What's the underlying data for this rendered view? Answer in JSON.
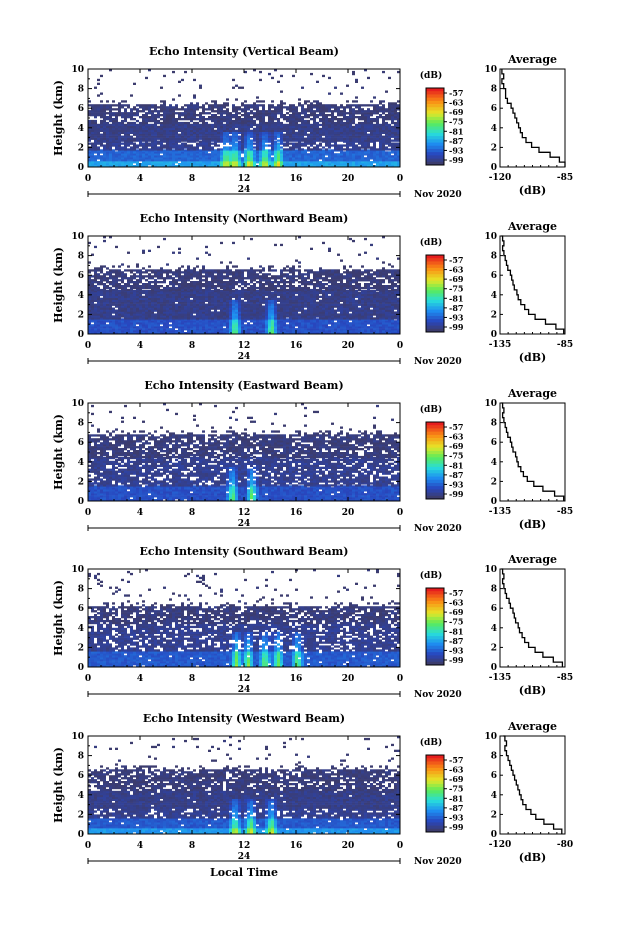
{
  "chart_data": [
    {
      "type": "heatmap",
      "title": "Echo Intensity (Vertical Beam)",
      "ylabel": "Height (km)",
      "xlim": [
        0,
        24
      ],
      "ylim": [
        0,
        10
      ],
      "xticks": [
        "0",
        "4",
        "8",
        "12",
        "16",
        "20",
        "0"
      ],
      "yticks": [
        "0",
        "2",
        "4",
        "6",
        "8",
        "10"
      ],
      "date_label": "24",
      "month_label": "Nov 2020",
      "colorbar": {
        "unit": "(dB)",
        "ticks": [
          "-57",
          "-63",
          "-69",
          "-75",
          "-81",
          "-87",
          "-93",
          "-99"
        ]
      },
      "echo_layers": [
        {
          "from_km": 0.0,
          "to_km": 0.6,
          "level": 0.3
        },
        {
          "from_km": 0.6,
          "to_km": 1.7,
          "level": 0.18
        },
        {
          "from_km": 1.7,
          "to_km": 2.6,
          "level": 0.05,
          "gaps": true
        },
        {
          "from_km": 2.6,
          "to_km": 4.4,
          "level": 0.04
        },
        {
          "from_km": 4.4,
          "to_km": 6.4,
          "level": 0.02,
          "gaps": true
        },
        {
          "from_km": 6.4,
          "to_km": 10.0,
          "level": 0.0,
          "sparse": true
        }
      ],
      "convection_hours": [
        10.5,
        11.2,
        12.3,
        13.5,
        14.5
      ],
      "average": {
        "title": "Average",
        "xlabel": "(dB)",
        "xticks": [
          "-120",
          "-85"
        ],
        "xlim": [
          -120,
          -85
        ],
        "heights_km": [
          0,
          0.5,
          1,
          1.5,
          2,
          2.5,
          3,
          3.5,
          4,
          4.5,
          5,
          5.5,
          6,
          6.5,
          7,
          7.5,
          8,
          8.5,
          9,
          9.5,
          10
        ],
        "values_db": [
          -85,
          -88,
          -93,
          -99,
          -103,
          -106,
          -108,
          -109,
          -110,
          -111,
          -112,
          -113,
          -114,
          -116,
          -117,
          -117,
          -118,
          -119,
          -118,
          -119,
          -119
        ]
      }
    },
    {
      "type": "heatmap",
      "title": "Echo Intensity (Northward Beam)",
      "ylabel": "Height (km)",
      "xlim": [
        0,
        24
      ],
      "ylim": [
        0,
        10
      ],
      "xticks": [
        "0",
        "4",
        "8",
        "12",
        "16",
        "20",
        "0"
      ],
      "yticks": [
        "0",
        "2",
        "4",
        "6",
        "8",
        "10"
      ],
      "date_label": "24",
      "month_label": "Nov 2020",
      "colorbar": {
        "unit": "(dB)",
        "ticks": [
          "-57",
          "-63",
          "-69",
          "-75",
          "-81",
          "-87",
          "-93",
          "-99"
        ]
      },
      "echo_layers": [
        {
          "from_km": 0.0,
          "to_km": 1.5,
          "level": 0.14
        },
        {
          "from_km": 1.5,
          "to_km": 4.4,
          "level": 0.04
        },
        {
          "from_km": 4.4,
          "to_km": 6.6,
          "level": 0.02,
          "gaps": true
        },
        {
          "from_km": 6.6,
          "to_km": 10.0,
          "level": 0.0,
          "sparse": true
        }
      ],
      "convection_hours": [
        11.2,
        14.0
      ],
      "average": {
        "title": "Average",
        "xlabel": "(dB)",
        "xticks": [
          "-135",
          "-85"
        ],
        "xlim": [
          -135,
          -85
        ],
        "heights_km": [
          0,
          0.5,
          1,
          1.5,
          2,
          2.5,
          3,
          3.5,
          4,
          4.5,
          5,
          5.5,
          6,
          6.5,
          7,
          7.5,
          8,
          8.5,
          9,
          9.5,
          10
        ],
        "values_db": [
          -86,
          -92,
          -100,
          -108,
          -113,
          -116,
          -119,
          -121,
          -122,
          -124,
          -125,
          -126,
          -127,
          -129,
          -130,
          -131,
          -132,
          -133,
          -132,
          -133,
          -134
        ]
      }
    },
    {
      "type": "heatmap",
      "title": "Echo Intensity (Eastward Beam)",
      "ylabel": "Height (km)",
      "xlim": [
        0,
        24
      ],
      "ylim": [
        0,
        10
      ],
      "xticks": [
        "0",
        "4",
        "8",
        "12",
        "16",
        "20",
        "0"
      ],
      "yticks": [
        "0",
        "2",
        "4",
        "6",
        "8",
        "10"
      ],
      "date_label": "24",
      "month_label": "Nov 2020",
      "colorbar": {
        "unit": "(dB)",
        "ticks": [
          "-57",
          "-63",
          "-69",
          "-75",
          "-81",
          "-87",
          "-93",
          "-99"
        ]
      },
      "echo_layers": [
        {
          "from_km": 0.0,
          "to_km": 1.5,
          "level": 0.14
        },
        {
          "from_km": 1.5,
          "to_km": 4.4,
          "level": 0.05,
          "gaps": true
        },
        {
          "from_km": 4.4,
          "to_km": 6.8,
          "level": 0.02,
          "gaps": true
        },
        {
          "from_km": 6.8,
          "to_km": 10.0,
          "level": 0.0,
          "sparse": true
        }
      ],
      "convection_hours": [
        11.0,
        12.5
      ],
      "average": {
        "title": "Average",
        "xlabel": "(dB)",
        "xticks": [
          "-135",
          "-85"
        ],
        "xlim": [
          -135,
          -85
        ],
        "heights_km": [
          0,
          0.5,
          1,
          1.5,
          2,
          2.5,
          3,
          3.5,
          4,
          4.5,
          5,
          5.5,
          6,
          6.5,
          7,
          7.5,
          8,
          8.5,
          9,
          9.5,
          10
        ],
        "values_db": [
          -86,
          -93,
          -102,
          -109,
          -114,
          -117,
          -119,
          -121,
          -122,
          -123,
          -125,
          -126,
          -127,
          -129,
          -130,
          -131,
          -132,
          -133,
          -132,
          -133,
          -134
        ]
      }
    },
    {
      "type": "heatmap",
      "title": "Echo Intensity (Southward Beam)",
      "ylabel": "Height (km)",
      "xlim": [
        0,
        24
      ],
      "ylim": [
        0,
        10
      ],
      "xticks": [
        "0",
        "4",
        "8",
        "12",
        "16",
        "20",
        "0"
      ],
      "yticks": [
        "0",
        "2",
        "4",
        "6",
        "8",
        "10"
      ],
      "date_label": "24",
      "month_label": "Nov 2020",
      "colorbar": {
        "unit": "(dB)",
        "ticks": [
          "-57",
          "-63",
          "-69",
          "-75",
          "-81",
          "-87",
          "-93",
          "-99"
        ]
      },
      "echo_layers": [
        {
          "from_km": 0.0,
          "to_km": 1.6,
          "level": 0.16
        },
        {
          "from_km": 1.6,
          "to_km": 4.4,
          "level": 0.05,
          "gaps": true
        },
        {
          "from_km": 4.4,
          "to_km": 6.2,
          "level": 0.02,
          "gaps": true
        },
        {
          "from_km": 6.2,
          "to_km": 10.0,
          "level": 0.0,
          "sparse": true
        }
      ],
      "convection_hours": [
        11.3,
        12.2,
        13.5,
        14.5,
        16.0
      ],
      "average": {
        "title": "Average",
        "xlabel": "(dB)",
        "xticks": [
          "-135",
          "-85"
        ],
        "xlim": [
          -135,
          -85
        ],
        "heights_km": [
          0,
          0.5,
          1,
          1.5,
          2,
          2.5,
          3,
          3.5,
          4,
          4.5,
          5,
          5.5,
          6,
          6.5,
          7,
          7.5,
          8,
          8.5,
          9,
          9.5,
          10
        ],
        "values_db": [
          -87,
          -94,
          -102,
          -108,
          -113,
          -116,
          -118,
          -120,
          -121,
          -123,
          -124,
          -125,
          -127,
          -128,
          -130,
          -131,
          -132,
          -133,
          -132,
          -133,
          -134
        ]
      }
    },
    {
      "type": "heatmap",
      "title": "Echo Intensity (Westward Beam)",
      "ylabel": "Height (km)",
      "xlim": [
        0,
        24
      ],
      "ylim": [
        0,
        10
      ],
      "xticks": [
        "0",
        "4",
        "8",
        "12",
        "16",
        "20",
        "0"
      ],
      "yticks": [
        "0",
        "2",
        "4",
        "6",
        "8",
        "10"
      ],
      "date_label": "24",
      "month_label": "Nov 2020",
      "xlabel": "Local Time",
      "colorbar": {
        "unit": "(dB)",
        "ticks": [
          "-57",
          "-63",
          "-69",
          "-75",
          "-81",
          "-87",
          "-93",
          "-99"
        ]
      },
      "echo_layers": [
        {
          "from_km": 0.0,
          "to_km": 0.6,
          "level": 0.28
        },
        {
          "from_km": 0.6,
          "to_km": 1.6,
          "level": 0.16
        },
        {
          "from_km": 1.6,
          "to_km": 2.6,
          "level": 0.05,
          "gaps": true
        },
        {
          "from_km": 2.6,
          "to_km": 4.4,
          "level": 0.04
        },
        {
          "from_km": 4.4,
          "to_km": 6.6,
          "level": 0.02,
          "gaps": true
        },
        {
          "from_km": 6.6,
          "to_km": 10.0,
          "level": 0.0,
          "sparse": true
        }
      ],
      "convection_hours": [
        11.2,
        12.4,
        14.0
      ],
      "average": {
        "title": "Average",
        "xlabel": "(dB)",
        "xticks": [
          "-120",
          "-80"
        ],
        "xlim": [
          -120,
          -80
        ],
        "heights_km": [
          0,
          0.5,
          1,
          1.5,
          2,
          2.5,
          3,
          3.5,
          4,
          4.5,
          5,
          5.5,
          6,
          6.5,
          7,
          7.5,
          8,
          8.5,
          9,
          9.5,
          10
        ],
        "values_db": [
          -82,
          -87,
          -93,
          -98,
          -101,
          -104,
          -106,
          -107,
          -108,
          -109,
          -110,
          -111,
          -112,
          -113,
          -114,
          -115,
          -116,
          -117,
          -116,
          -117,
          -118
        ]
      }
    }
  ]
}
